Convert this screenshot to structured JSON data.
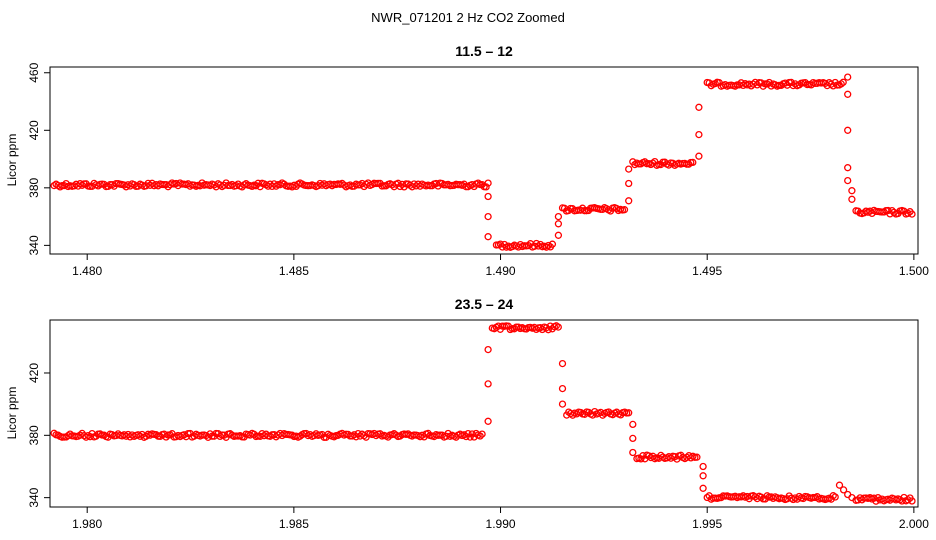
{
  "figure_title": "NWR_071201  2 Hz CO2 Zoomed",
  "chart_data": [
    {
      "type": "scatter",
      "title": "11.5 – 12",
      "xlabel": "",
      "ylabel": "Licor ppm",
      "xlim": [
        1.4791,
        1.5001
      ],
      "ylim": [
        334,
        464
      ],
      "xticks": [
        "1.480",
        "1.485",
        "1.490",
        "1.495",
        "1.500"
      ],
      "yticks": [
        "340",
        "380",
        "420",
        "460"
      ],
      "marker_color": "#ff0000",
      "marker": "open-circle",
      "grid": false,
      "segments": [
        {
          "x_start": 1.4792,
          "x_end": 1.4897,
          "y": 382
        },
        {
          "x_start": 1.4899,
          "x_end": 1.4913,
          "y": 340
        },
        {
          "x_start": 1.4915,
          "x_end": 1.493,
          "y": 365
        },
        {
          "x_start": 1.4932,
          "x_end": 1.4947,
          "y": 397
        },
        {
          "x_start": 1.495,
          "x_end": 1.4983,
          "y": 452
        },
        {
          "x_start": 1.4986,
          "x_end": 1.5,
          "y": 363
        }
      ],
      "transition_points": [
        {
          "x": 1.4897,
          "y": 374
        },
        {
          "x": 1.4897,
          "y": 360
        },
        {
          "x": 1.4897,
          "y": 346
        },
        {
          "x": 1.4914,
          "y": 347
        },
        {
          "x": 1.4914,
          "y": 355
        },
        {
          "x": 1.4914,
          "y": 360
        },
        {
          "x": 1.4931,
          "y": 371
        },
        {
          "x": 1.4931,
          "y": 383
        },
        {
          "x": 1.4931,
          "y": 393
        },
        {
          "x": 1.4948,
          "y": 402
        },
        {
          "x": 1.4948,
          "y": 417
        },
        {
          "x": 1.4948,
          "y": 436
        },
        {
          "x": 1.4984,
          "y": 457
        },
        {
          "x": 1.4984,
          "y": 445
        },
        {
          "x": 1.4984,
          "y": 420
        },
        {
          "x": 1.4984,
          "y": 394
        },
        {
          "x": 1.4984,
          "y": 385
        },
        {
          "x": 1.4985,
          "y": 378
        },
        {
          "x": 1.4985,
          "y": 372
        }
      ]
    },
    {
      "type": "scatter",
      "title": "23.5 – 24",
      "xlabel": "",
      "ylabel": "Licor ppm",
      "xlim": [
        1.9791,
        2.0001
      ],
      "ylim": [
        334,
        454
      ],
      "xticks": [
        "1.980",
        "1.985",
        "1.990",
        "1.995",
        "2.000"
      ],
      "yticks": [
        "340",
        "380",
        "420"
      ],
      "marker_color": "#ff0000",
      "marker": "open-circle",
      "grid": false,
      "segments": [
        {
          "x_start": 1.9792,
          "x_end": 1.9896,
          "y": 380
        },
        {
          "x_start": 1.9898,
          "x_end": 1.9914,
          "y": 449
        },
        {
          "x_start": 1.9916,
          "x_end": 1.9931,
          "y": 394
        },
        {
          "x_start": 1.9933,
          "x_end": 1.9948,
          "y": 366
        },
        {
          "x_start": 1.995,
          "x_end": 1.9981,
          "y": 340
        },
        {
          "x_start": 1.9986,
          "x_end": 2.0,
          "y": 339
        }
      ],
      "transition_points": [
        {
          "x": 1.9897,
          "y": 389
        },
        {
          "x": 1.9897,
          "y": 413
        },
        {
          "x": 1.9897,
          "y": 435
        },
        {
          "x": 1.9915,
          "y": 426
        },
        {
          "x": 1.9915,
          "y": 410
        },
        {
          "x": 1.9915,
          "y": 400
        },
        {
          "x": 1.9932,
          "y": 387
        },
        {
          "x": 1.9932,
          "y": 378
        },
        {
          "x": 1.9932,
          "y": 369
        },
        {
          "x": 1.9949,
          "y": 360
        },
        {
          "x": 1.9949,
          "y": 354
        },
        {
          "x": 1.9949,
          "y": 346
        },
        {
          "x": 1.9982,
          "y": 348
        },
        {
          "x": 1.9983,
          "y": 345
        },
        {
          "x": 1.9984,
          "y": 342
        },
        {
          "x": 1.9985,
          "y": 340
        }
      ]
    }
  ]
}
